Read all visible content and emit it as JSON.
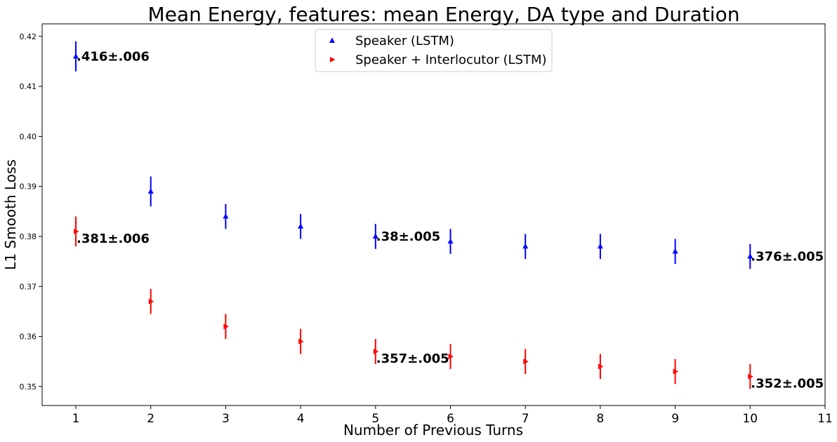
{
  "chart_data": {
    "type": "scatter",
    "title": "Mean Energy, features: mean Energy, DA type and Duration",
    "xlabel": "Number of Previous Turns",
    "ylabel": "L1 Smooth Loss",
    "xlim": [
      0.55,
      11
    ],
    "ylim": [
      0.3462,
      0.4225
    ],
    "xticks": [
      "1",
      "2",
      "3",
      "4",
      "5",
      "6",
      "7",
      "8",
      "9",
      "10",
      "11"
    ],
    "yticks": [
      "0.35",
      "0.36",
      "0.37",
      "0.38",
      "0.39",
      "0.40",
      "0.41",
      "0.42"
    ],
    "legend_position": "top-center",
    "series": [
      {
        "name": "Speaker (LSTM)",
        "color": "#0000ff",
        "marker": "triangle-up",
        "x": [
          1,
          2,
          3,
          4,
          5,
          6,
          7,
          8,
          9,
          10
        ],
        "y": [
          0.416,
          0.389,
          0.384,
          0.382,
          0.38,
          0.379,
          0.378,
          0.378,
          0.377,
          0.376
        ],
        "err": [
          0.003,
          0.003,
          0.0025,
          0.0025,
          0.0025,
          0.0025,
          0.0025,
          0.0025,
          0.0025,
          0.0025
        ]
      },
      {
        "name": "Speaker + Interlocutor (LSTM)",
        "color": "#ff0000",
        "marker": "triangle-right",
        "x": [
          1,
          2,
          3,
          4,
          5,
          6,
          7,
          8,
          9,
          10
        ],
        "y": [
          0.381,
          0.367,
          0.362,
          0.359,
          0.357,
          0.356,
          0.355,
          0.354,
          0.353,
          0.352
        ],
        "err": [
          0.003,
          0.0025,
          0.0025,
          0.0025,
          0.0025,
          0.0025,
          0.0025,
          0.0025,
          0.0025,
          0.0025
        ]
      }
    ],
    "annotations": [
      {
        "text": ".416±.006",
        "x": 1,
        "y": 0.416,
        "anchor": "right"
      },
      {
        "text": ".381±.006",
        "x": 1,
        "y": 0.381,
        "anchor": "below-right"
      },
      {
        "text": ".38±.005",
        "x": 5,
        "y": 0.38,
        "anchor": "right"
      },
      {
        "text": ".376±.005",
        "x": 10,
        "y": 0.376,
        "anchor": "right"
      },
      {
        "text": ".357±.005",
        "x": 5,
        "y": 0.357,
        "anchor": "below-right"
      },
      {
        "text": ".352±.005",
        "x": 10,
        "y": 0.352,
        "anchor": "below-right"
      }
    ]
  }
}
